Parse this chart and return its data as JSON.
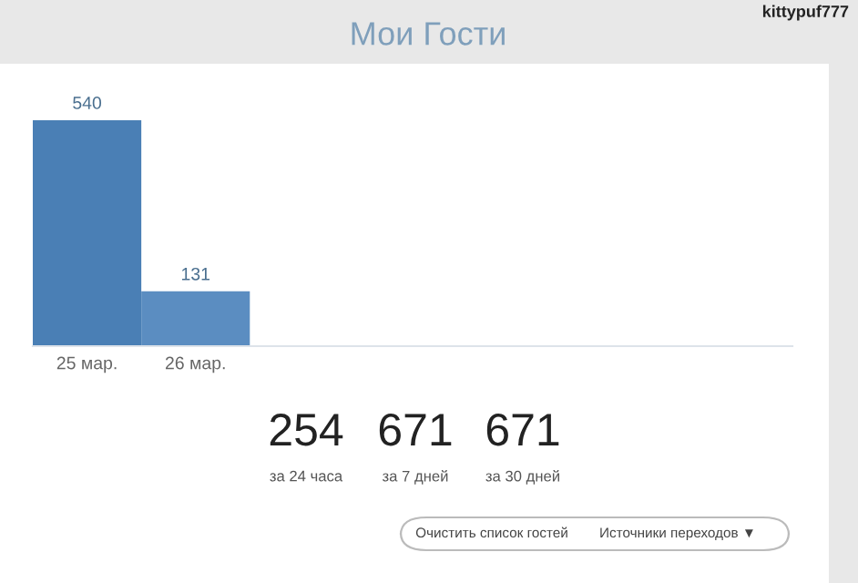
{
  "chart_data": {
    "type": "bar",
    "title": "Мои Гости",
    "categories": [
      "25 мар.",
      "26 мар."
    ],
    "values": [
      540,
      131
    ],
    "colors": [
      "#4a7fb5",
      "#5b8dc1"
    ],
    "data_labels": true,
    "grid": false,
    "annotations": [
      "kittypuf777",
      "254",
      "за 24 часа",
      "671",
      "за 7 дней",
      "671",
      "за 30 дней",
      "Очистить список гостей",
      "Источники переходов ▼"
    ]
  }
}
